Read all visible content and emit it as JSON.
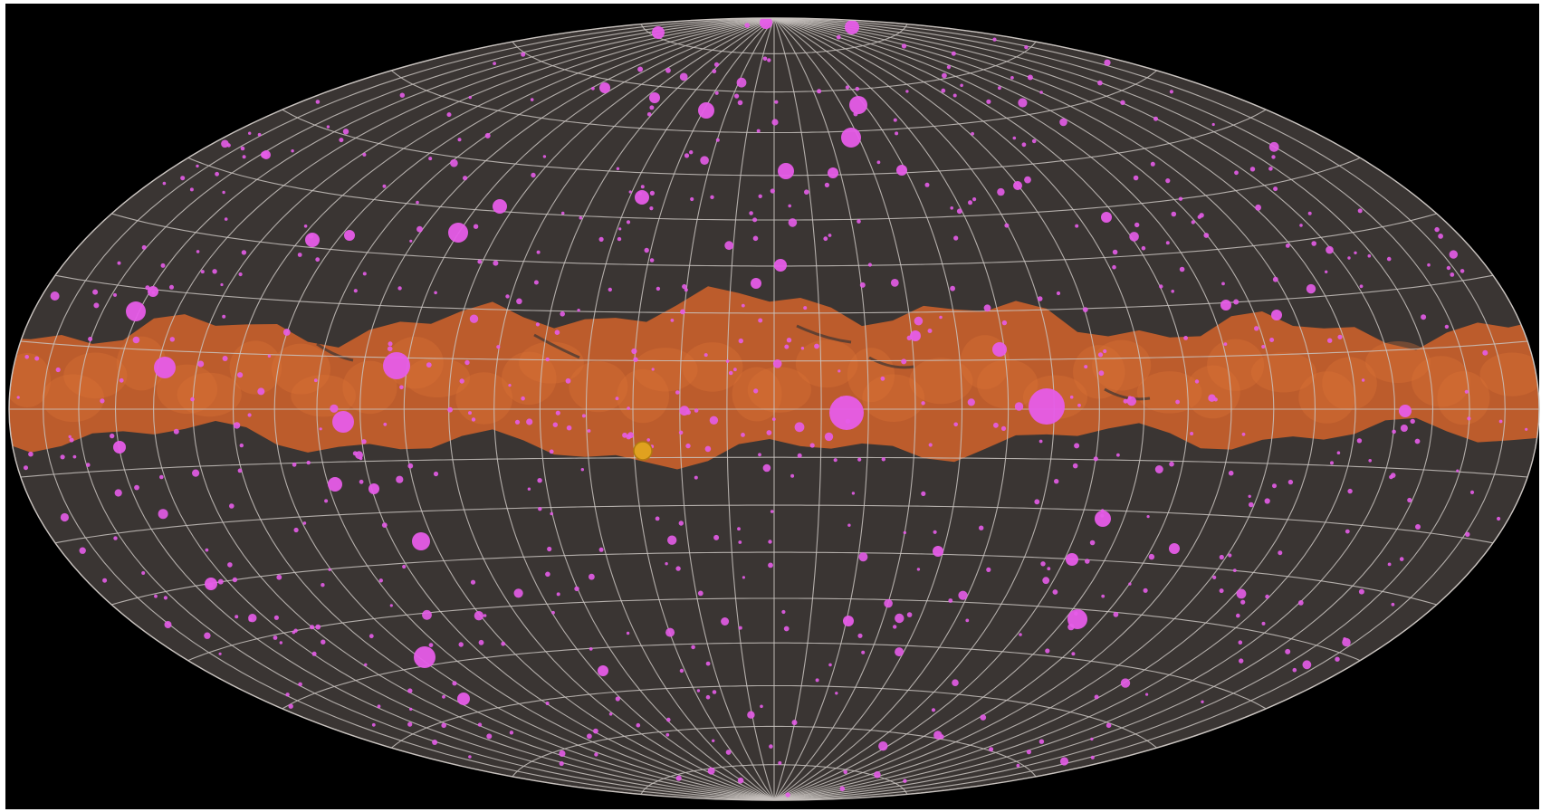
{
  "image": {
    "subject": "all-sky-map",
    "projection": "hammer-aitoff",
    "palette": {
      "frame": "#ffffff",
      "space": "#000000",
      "sky_fill": "#3a3533",
      "grid_line": "#c9c3bf",
      "galactic_band": "#c8602b",
      "galactic_band_highlight": "#dc7236",
      "source": "#e65ce8",
      "highlight_source": "#e0a11f"
    },
    "grid": {
      "longitude_step_deg": 10,
      "latitude_step_deg": 10
    }
  }
}
